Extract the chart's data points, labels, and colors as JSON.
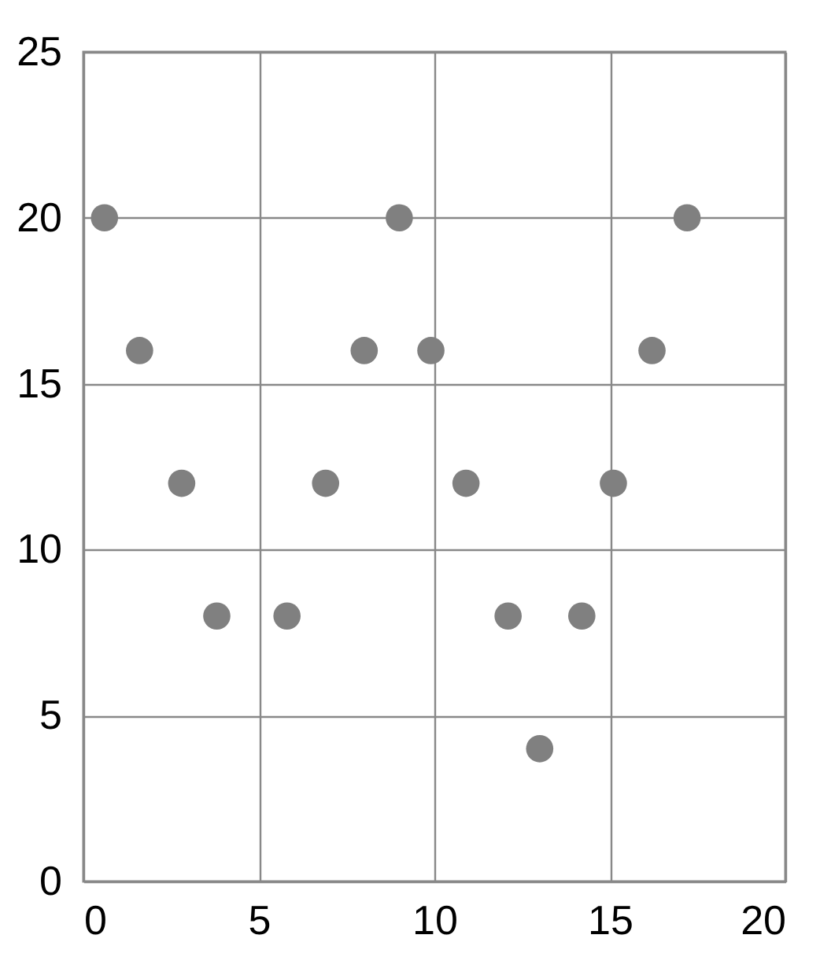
{
  "chart_data": {
    "type": "scatter",
    "x": [
      0.6,
      1.6,
      2.8,
      3.8,
      5.8,
      6.9,
      8.0,
      9.0,
      9.9,
      10.9,
      12.1,
      13.0,
      14.2,
      15.1,
      16.2,
      17.2
    ],
    "values": [
      20,
      16,
      12,
      8,
      8,
      12,
      16,
      20,
      16,
      12,
      8,
      4,
      8,
      12,
      16,
      20
    ],
    "color": "#808080",
    "marker": "circle",
    "xlim": [
      0,
      20
    ],
    "ylim": [
      0,
      25
    ],
    "xticks": [
      0,
      5,
      10,
      15,
      20
    ],
    "yticks": [
      0,
      5,
      10,
      15,
      20,
      25
    ],
    "grid": true
  }
}
